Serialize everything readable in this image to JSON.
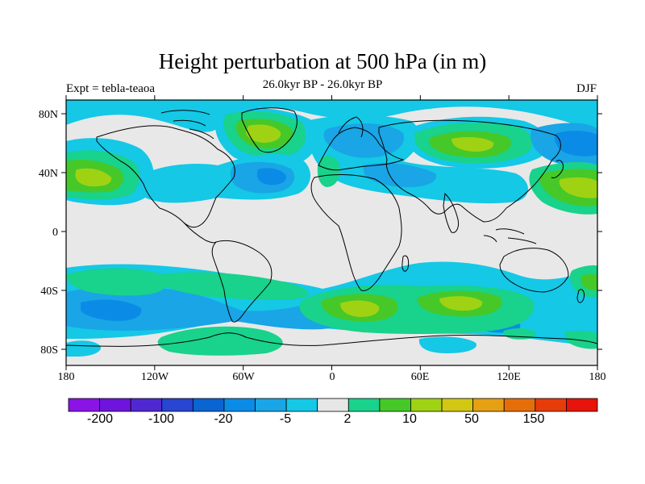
{
  "title": "Height perturbation at 500 hPa (in m)",
  "subtitle": "26.0kyr BP - 26.0kyr BP",
  "left_label": "Expt = tebla-teaoa",
  "right_label": "DJF",
  "colors": {
    "background_land_ocean": "#e8e8e8",
    "bins": [
      "#8a14e6",
      "#6e14dc",
      "#5028d2",
      "#2846d2",
      "#0a64d2",
      "#0a8ce6",
      "#19a5e6",
      "#14c8e6",
      "#e6e6e6",
      "#19d28c",
      "#46c828",
      "#a0d214",
      "#d2c814",
      "#e6a014",
      "#e66e0a",
      "#e63c0a",
      "#e6140a"
    ]
  },
  "map": {
    "lon_ticks": [
      "180",
      "120W",
      "60W",
      "0",
      "60E",
      "120E",
      "180"
    ],
    "lat_ticks": [
      "80N",
      "40N",
      "0",
      "40S",
      "80S"
    ],
    "regions": [
      {
        "name": "n-pacific-positive",
        "lon": -150,
        "lat": 35,
        "level": 10
      },
      {
        "name": "greenland-positive",
        "lon": -45,
        "lat": 65,
        "level": 10
      },
      {
        "name": "n-atlantic-negative",
        "lon": -45,
        "lat": 40,
        "level": -5
      },
      {
        "name": "siberia-positive",
        "lon": 80,
        "lat": 55,
        "level": 10
      },
      {
        "name": "n-asia-pacific-positive",
        "lon": 160,
        "lat": 35,
        "level": 10
      },
      {
        "name": "eurasia-negative",
        "lon": 60,
        "lat": 35,
        "level": -5
      },
      {
        "name": "s-pacific-negative",
        "lon": -140,
        "lat": -50,
        "level": -5
      },
      {
        "name": "s-atlantic-positive",
        "lon": 15,
        "lat": -52,
        "level": 10
      },
      {
        "name": "s-indian-positive",
        "lon": 90,
        "lat": -48,
        "level": 10
      },
      {
        "name": "antarctic-positive",
        "lon": -60,
        "lat": -72,
        "level": 2
      }
    ]
  },
  "colorbar": {
    "labels": [
      "-200",
      "-100",
      "-20",
      "-5",
      "2",
      "10",
      "50",
      "150"
    ]
  }
}
